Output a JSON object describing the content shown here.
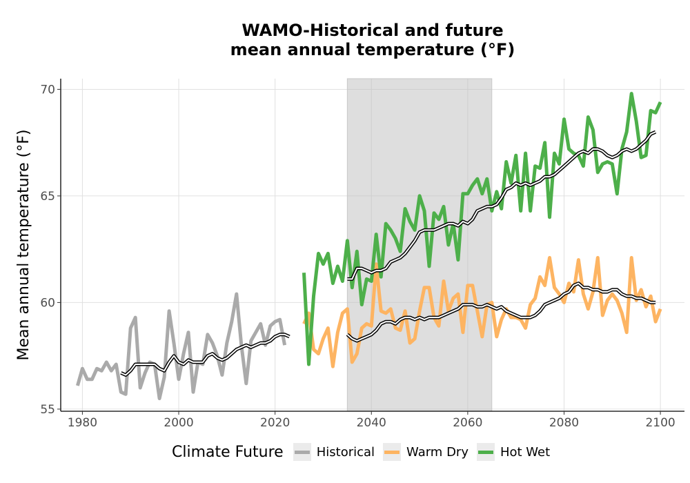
{
  "chart_data": {
    "type": "line",
    "title": [
      "WAMO-Historical and future",
      "mean annual temperature (°F)"
    ],
    "ylabel": "Mean annual temperature (°F)",
    "xlabel": "",
    "xlim": [
      1975.5,
      2105
    ],
    "ylim": [
      54.9,
      70.5
    ],
    "xticks": [
      1980,
      2000,
      2020,
      2040,
      2060,
      2080,
      2100
    ],
    "yticks": [
      55,
      60,
      65,
      70
    ],
    "grid": true,
    "shaded_period": [
      2035,
      2065
    ],
    "legend": {
      "title": "Climate Future",
      "position": "bottom"
    },
    "series": [
      {
        "name": "Historical",
        "color": "#aaaaaa",
        "x_start": 1979,
        "values": [
          56.1,
          56.9,
          56.4,
          56.4,
          56.9,
          56.8,
          57.2,
          56.8,
          57.1,
          55.8,
          55.7,
          58.8,
          59.3,
          56.0,
          56.7,
          57.2,
          57.1,
          55.5,
          56.5,
          59.6,
          58.1,
          56.4,
          57.6,
          58.6,
          55.8,
          57.2,
          57.1,
          58.5,
          58.1,
          57.5,
          56.6,
          58.1,
          59.1,
          60.4,
          58.0,
          56.2,
          58.2,
          58.6,
          59.0,
          58.0,
          58.9,
          59.1,
          59.2,
          58.0
        ]
      },
      {
        "name": "Warm Dry",
        "color": "#fdb462",
        "x_start": 2026,
        "values": [
          59.0,
          59.5,
          57.8,
          57.6,
          58.3,
          58.8,
          57.0,
          58.6,
          59.5,
          59.7,
          57.2,
          57.6,
          58.8,
          59.0,
          58.9,
          61.8,
          59.6,
          59.5,
          59.7,
          58.8,
          58.7,
          59.6,
          58.1,
          58.3,
          59.6,
          60.7,
          60.7,
          59.3,
          58.9,
          61.0,
          59.6,
          60.2,
          60.4,
          58.6,
          60.8,
          60.8,
          59.6,
          58.4,
          59.9,
          60.0,
          58.4,
          59.2,
          59.7,
          59.3,
          59.3,
          59.2,
          58.8,
          59.9,
          60.2,
          61.2,
          60.8,
          62.1,
          60.7,
          60.4,
          60.0,
          60.9,
          60.5,
          62.0,
          60.4,
          59.7,
          60.5,
          62.1,
          59.4,
          60.1,
          60.4,
          60.1,
          59.5,
          58.6,
          62.1,
          60.1,
          60.6,
          59.8,
          60.3,
          59.1,
          59.7
        ]
      },
      {
        "name": "Hot Wet",
        "color": "#4daf4a",
        "x_start": 2026,
        "values": [
          61.4,
          57.1,
          60.3,
          62.3,
          61.8,
          62.3,
          60.9,
          61.7,
          61.0,
          62.9,
          60.7,
          62.4,
          59.9,
          61.1,
          61.0,
          63.2,
          61.2,
          63.7,
          63.4,
          63.0,
          62.4,
          64.4,
          63.8,
          63.4,
          65.0,
          64.3,
          61.7,
          64.2,
          63.9,
          64.5,
          62.7,
          63.7,
          62.0,
          65.1,
          65.1,
          65.5,
          65.8,
          65.1,
          65.8,
          64.3,
          65.2,
          64.4,
          66.6,
          65.6,
          66.9,
          64.3,
          67.0,
          64.3,
          66.4,
          66.3,
          67.5,
          64.0,
          67.0,
          66.5,
          68.6,
          67.2,
          67.0,
          66.9,
          66.4,
          68.7,
          68.1,
          66.1,
          66.5,
          66.6,
          66.5,
          65.1,
          67.2,
          68.0,
          69.8,
          68.5,
          66.8,
          66.9,
          69.0,
          68.9,
          69.4
        ]
      }
    ],
    "smoothed": [
      {
        "series": "Historical",
        "x_start": 1988,
        "values": [
          56.7,
          56.6,
          56.8,
          57.1,
          57.1,
          57.1,
          57.1,
          57.1,
          56.9,
          56.8,
          57.2,
          57.5,
          57.2,
          57.1,
          57.3,
          57.2,
          57.2,
          57.2,
          57.5,
          57.6,
          57.4,
          57.3,
          57.4,
          57.6,
          57.8,
          57.9,
          58.0,
          57.9,
          58.0,
          58.1,
          58.1,
          58.2,
          58.4,
          58.5,
          58.5,
          58.4
        ]
      },
      {
        "series": "Warm Dry",
        "x_start": 2035,
        "values": [
          58.5,
          58.3,
          58.2,
          58.3,
          58.4,
          58.5,
          58.7,
          59.0,
          59.1,
          59.1,
          59.0,
          59.2,
          59.3,
          59.3,
          59.2,
          59.3,
          59.2,
          59.3,
          59.3,
          59.3,
          59.4,
          59.5,
          59.6,
          59.7,
          59.9,
          59.9,
          59.9,
          59.8,
          59.8,
          59.9,
          59.8,
          59.7,
          59.8,
          59.6,
          59.5,
          59.4,
          59.3,
          59.3,
          59.3,
          59.4,
          59.6,
          59.9,
          60.0,
          60.1,
          60.2,
          60.4,
          60.5,
          60.8,
          60.9,
          60.7,
          60.7,
          60.6,
          60.6,
          60.5,
          60.5,
          60.6,
          60.6,
          60.4,
          60.3,
          60.3,
          60.2,
          60.2,
          60.1,
          60.0,
          60.0
        ]
      },
      {
        "series": "Hot Wet",
        "x_start": 2035,
        "values": [
          61.1,
          61.1,
          61.6,
          61.6,
          61.5,
          61.4,
          61.5,
          61.5,
          61.6,
          61.9,
          62.0,
          62.1,
          62.3,
          62.6,
          62.9,
          63.3,
          63.4,
          63.4,
          63.4,
          63.5,
          63.6,
          63.7,
          63.7,
          63.6,
          63.8,
          63.7,
          63.9,
          64.3,
          64.4,
          64.5,
          64.5,
          64.6,
          64.9,
          65.3,
          65.4,
          65.6,
          65.5,
          65.6,
          65.5,
          65.6,
          65.7,
          65.9,
          65.9,
          66.0,
          66.2,
          66.4,
          66.6,
          66.8,
          67.0,
          67.1,
          67.0,
          67.2,
          67.2,
          67.1,
          66.9,
          66.8,
          66.9,
          67.1,
          67.2,
          67.1,
          67.2,
          67.4,
          67.6,
          67.9,
          68.0
        ]
      }
    ]
  }
}
